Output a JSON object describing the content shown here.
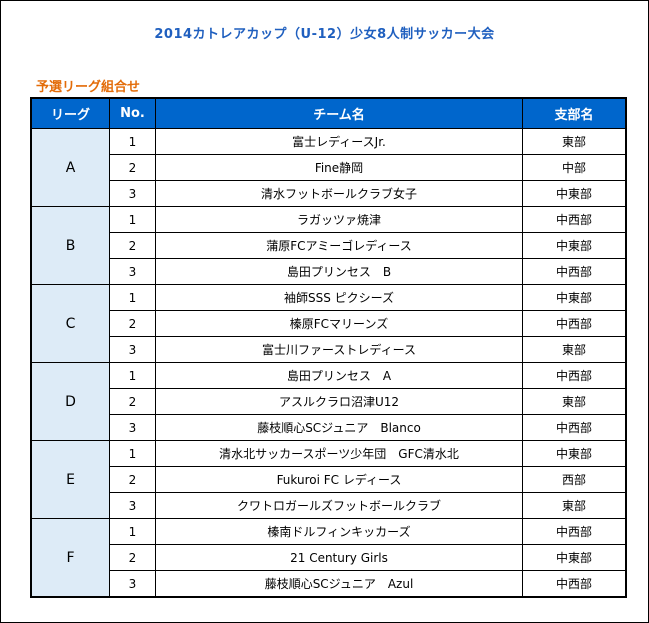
{
  "title": "2014カトレアカップ（U-12）少女8人制サッカー大会",
  "subtitle": "予選リーグ組合せ",
  "headers": {
    "league": "リーグ",
    "no": "No.",
    "team": "チーム名",
    "branch": "支部名"
  },
  "leagues": [
    {
      "name": "A",
      "teams": [
        {
          "no": "1",
          "team": "富士レディースJr.",
          "branch": "東部"
        },
        {
          "no": "2",
          "team": "Fine静岡",
          "branch": "中部"
        },
        {
          "no": "3",
          "team": "清水フットボールクラブ女子",
          "branch": "中東部"
        }
      ]
    },
    {
      "name": "B",
      "teams": [
        {
          "no": "1",
          "team": "ラガッツァ焼津",
          "branch": "中西部"
        },
        {
          "no": "2",
          "team": "蒲原FCアミーゴレディース",
          "branch": "中東部"
        },
        {
          "no": "3",
          "team": "島田プリンセス　B",
          "branch": "中西部"
        }
      ]
    },
    {
      "name": "C",
      "teams": [
        {
          "no": "1",
          "team": "袖師SSS ピクシーズ",
          "branch": "中東部"
        },
        {
          "no": "2",
          "team": "榛原FCマリーンズ",
          "branch": "中西部"
        },
        {
          "no": "3",
          "team": "富士川ファーストレディース",
          "branch": "東部"
        }
      ]
    },
    {
      "name": "D",
      "teams": [
        {
          "no": "1",
          "team": "島田プリンセス　A",
          "branch": "中西部"
        },
        {
          "no": "2",
          "team": "アスルクラロ沼津U12",
          "branch": "東部"
        },
        {
          "no": "3",
          "team": "藤枝順心SCジュニア　Blanco",
          "branch": "中西部"
        }
      ]
    },
    {
      "name": "E",
      "teams": [
        {
          "no": "1",
          "team": "清水北サッカースポーツ少年団　GFC清水北",
          "branch": "中東部"
        },
        {
          "no": "2",
          "team": "Fukuroi FC レディース",
          "branch": "西部"
        },
        {
          "no": "3",
          "team": "クワトロガールズフットボールクラブ",
          "branch": "東部"
        }
      ]
    },
    {
      "name": "F",
      "teams": [
        {
          "no": "1",
          "team": "榛南ドルフィンキッカーズ",
          "branch": "中西部"
        },
        {
          "no": "2",
          "team": "21 Century Girls",
          "branch": "中東部"
        },
        {
          "no": "3",
          "team": "藤枝順心SCジュニア　Azul",
          "branch": "中西部"
        }
      ]
    }
  ],
  "colors": {
    "title": "#1f5fbf",
    "subtitle": "#e36c09",
    "header_bg": "#0066cc",
    "league_bg": "#ddebf7"
  }
}
